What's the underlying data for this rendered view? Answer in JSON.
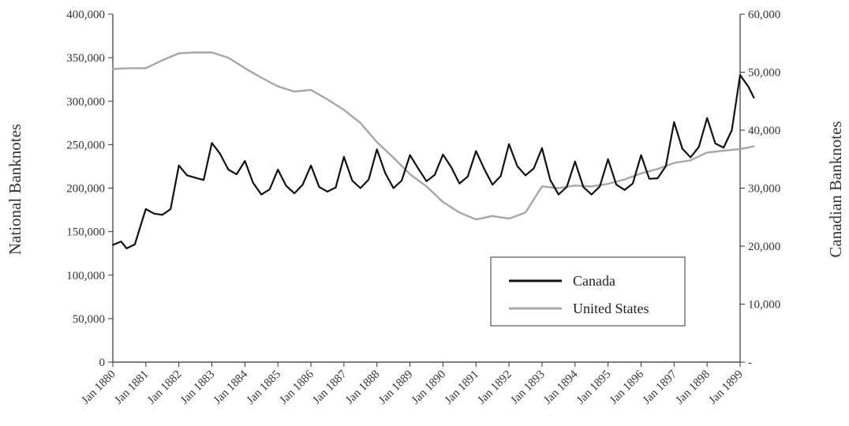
{
  "chart_data": {
    "type": "line",
    "xlabel": "",
    "ylabel": "National Banknotes",
    "y2label": "Canadian Banknotes",
    "x_ticks": [
      "Jan 1880",
      "Jan 1881",
      "Jan 1882",
      "Jan 1883",
      "Jan 1884",
      "Jan 1885",
      "Jan 1886",
      "Jan 1887",
      "Jan 1888",
      "Jan 1889",
      "Jan 1890",
      "Jan 1891",
      "Jan 1892",
      "Jan 1893",
      "Jan 1894",
      "Jan 1895",
      "Jan 1896",
      "Jan 1897",
      "Jan 1898",
      "Jan 1899"
    ],
    "ylim": [
      0,
      400000
    ],
    "y_ticks": [
      "0",
      "50,000",
      "100,000",
      "150,000",
      "200,000",
      "250,000",
      "300,000",
      "350,000",
      "400,000"
    ],
    "y2lim": [
      0,
      60000
    ],
    "y2_ticks": [
      "-",
      "10,000",
      "20,000",
      "30,000",
      "40,000",
      "50,000",
      "60,000"
    ],
    "grid": false,
    "legend_position": "bottom-right",
    "series": [
      {
        "name": "Canada",
        "axis": "right",
        "color": "#111111",
        "points": [
          [
            "1880-01",
            20200
          ],
          [
            "1880-04",
            20800
          ],
          [
            "1880-06",
            19600
          ],
          [
            "1880-09",
            20300
          ],
          [
            "1880-11",
            23400
          ],
          [
            "1881-01",
            26400
          ],
          [
            "1881-04",
            25600
          ],
          [
            "1881-07",
            25400
          ],
          [
            "1881-10",
            26400
          ],
          [
            "1882-01",
            33900
          ],
          [
            "1882-04",
            32200
          ],
          [
            "1882-07",
            31800
          ],
          [
            "1882-10",
            31400
          ],
          [
            "1883-01",
            37800
          ],
          [
            "1883-04",
            35900
          ],
          [
            "1883-07",
            33200
          ],
          [
            "1883-10",
            32400
          ],
          [
            "1884-01",
            34700
          ],
          [
            "1884-04",
            30900
          ],
          [
            "1884-07",
            28900
          ],
          [
            "1884-10",
            29800
          ],
          [
            "1885-01",
            33200
          ],
          [
            "1885-04",
            30400
          ],
          [
            "1885-07",
            29100
          ],
          [
            "1885-10",
            30600
          ],
          [
            "1886-01",
            33900
          ],
          [
            "1886-04",
            30200
          ],
          [
            "1886-07",
            29400
          ],
          [
            "1886-10",
            30100
          ],
          [
            "1887-01",
            35400
          ],
          [
            "1887-04",
            31300
          ],
          [
            "1887-07",
            30000
          ],
          [
            "1887-10",
            31500
          ],
          [
            "1888-01",
            36700
          ],
          [
            "1888-04",
            32600
          ],
          [
            "1888-07",
            30000
          ],
          [
            "1888-10",
            31300
          ],
          [
            "1889-01",
            35700
          ],
          [
            "1889-04",
            33400
          ],
          [
            "1889-07",
            31200
          ],
          [
            "1889-10",
            32300
          ],
          [
            "1890-01",
            35800
          ],
          [
            "1890-04",
            33600
          ],
          [
            "1890-07",
            30800
          ],
          [
            "1890-10",
            32000
          ],
          [
            "1891-01",
            36400
          ],
          [
            "1891-04",
            33300
          ],
          [
            "1891-07",
            30600
          ],
          [
            "1891-10",
            32100
          ],
          [
            "1892-01",
            37600
          ],
          [
            "1892-04",
            33800
          ],
          [
            "1892-07",
            32200
          ],
          [
            "1892-10",
            33400
          ],
          [
            "1893-01",
            36900
          ],
          [
            "1893-04",
            31400
          ],
          [
            "1893-07",
            28900
          ],
          [
            "1893-10",
            30200
          ],
          [
            "1894-01",
            34600
          ],
          [
            "1894-04",
            30200
          ],
          [
            "1894-07",
            28900
          ],
          [
            "1894-10",
            30300
          ],
          [
            "1895-01",
            35000
          ],
          [
            "1895-04",
            30600
          ],
          [
            "1895-07",
            29700
          ],
          [
            "1895-10",
            30800
          ],
          [
            "1896-01",
            35700
          ],
          [
            "1896-04",
            31600
          ],
          [
            "1896-07",
            31700
          ],
          [
            "1896-10",
            33800
          ],
          [
            "1897-01",
            41400
          ],
          [
            "1897-04",
            36800
          ],
          [
            "1897-07",
            35300
          ],
          [
            "1897-10",
            37100
          ],
          [
            "1898-01",
            42100
          ],
          [
            "1898-04",
            37700
          ],
          [
            "1898-07",
            37000
          ],
          [
            "1898-10",
            40000
          ],
          [
            "1899-01",
            49500
          ],
          [
            "1899-04",
            47500
          ],
          [
            "1899-06",
            45600
          ]
        ]
      },
      {
        "name": "United States",
        "axis": "left",
        "color": "#a6a6a6",
        "points": [
          [
            "1880-01",
            337000
          ],
          [
            "1880-07",
            338000
          ],
          [
            "1881-01",
            338000
          ],
          [
            "1881-07",
            347000
          ],
          [
            "1882-01",
            355000
          ],
          [
            "1882-07",
            356000
          ],
          [
            "1883-01",
            356000
          ],
          [
            "1883-07",
            350000
          ],
          [
            "1884-01",
            338000
          ],
          [
            "1884-07",
            327000
          ],
          [
            "1885-01",
            317000
          ],
          [
            "1885-07",
            311000
          ],
          [
            "1886-01",
            313000
          ],
          [
            "1886-07",
            302000
          ],
          [
            "1887-01",
            290000
          ],
          [
            "1887-07",
            275000
          ],
          [
            "1888-01",
            253000
          ],
          [
            "1888-07",
            235000
          ],
          [
            "1889-01",
            216000
          ],
          [
            "1889-07",
            202000
          ],
          [
            "1890-01",
            184000
          ],
          [
            "1890-07",
            172000
          ],
          [
            "1891-01",
            164000
          ],
          [
            "1891-07",
            168000
          ],
          [
            "1892-01",
            165000
          ],
          [
            "1892-07",
            172000
          ],
          [
            "1893-01",
            202000
          ],
          [
            "1893-07",
            200000
          ],
          [
            "1894-01",
            203000
          ],
          [
            "1894-07",
            202000
          ],
          [
            "1895-01",
            205000
          ],
          [
            "1895-07",
            210000
          ],
          [
            "1896-01",
            217000
          ],
          [
            "1896-07",
            222000
          ],
          [
            "1897-01",
            229000
          ],
          [
            "1897-07",
            232000
          ],
          [
            "1898-01",
            241000
          ],
          [
            "1898-07",
            243000
          ],
          [
            "1899-01",
            245000
          ],
          [
            "1899-06",
            248000
          ]
        ]
      }
    ]
  }
}
